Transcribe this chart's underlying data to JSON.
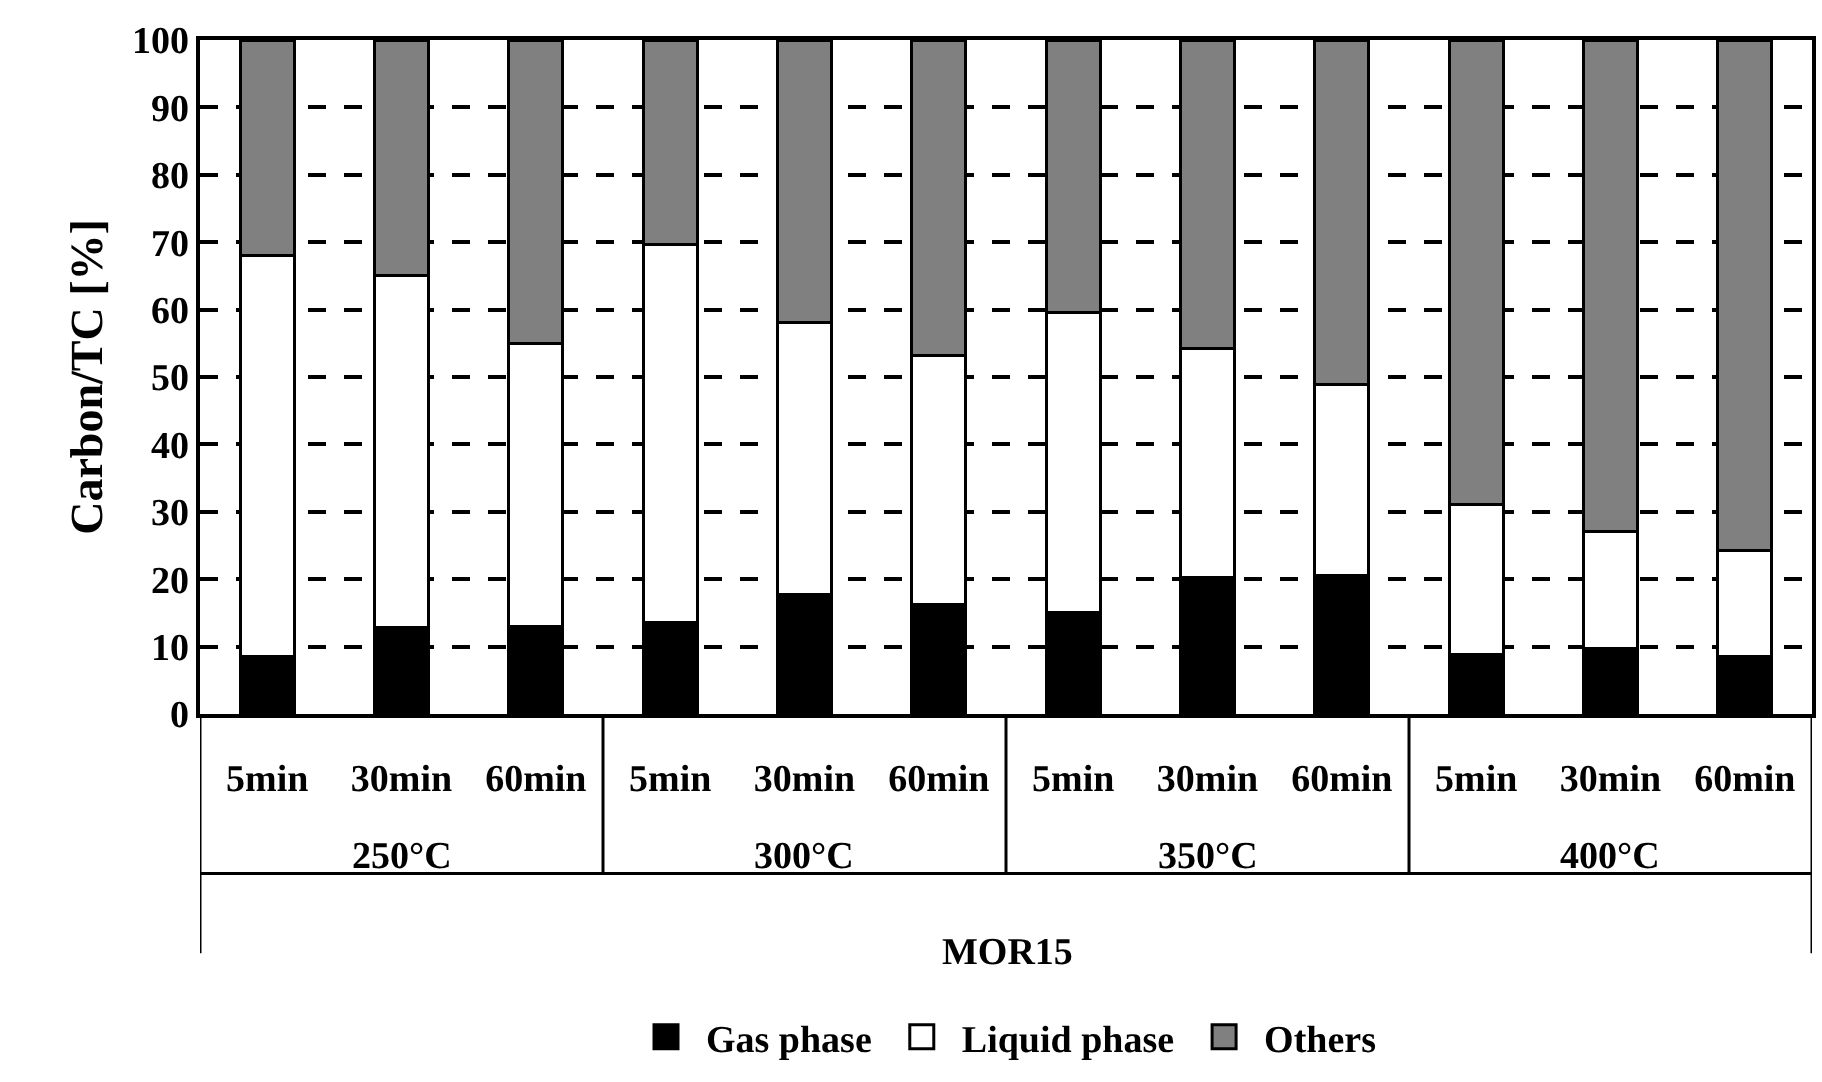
{
  "chart_data": {
    "type": "bar",
    "stacked": true,
    "ylabel": "Carbon/TC [%]",
    "xlabel": "MOR15",
    "categories": [
      "5min",
      "30min",
      "60min",
      "5min",
      "30min",
      "60min",
      "5min",
      "30min",
      "60min",
      "5min",
      "30min",
      "60min"
    ],
    "annotations": [
      "250°C",
      "300°C",
      "350°C",
      "400°C"
    ],
    "series": [
      {
        "name": "Gas phase",
        "color": "#000000",
        "values": [
          8.6,
          12.9,
          13.0,
          13.6,
          17.8,
          16.3,
          15.0,
          20.3,
          20.6,
          8.8,
          9.7,
          8.6
        ]
      },
      {
        "name": "Liquid phase",
        "color": "#ffffff",
        "values": [
          59.5,
          52.1,
          42.0,
          56.1,
          40.3,
          36.9,
          44.5,
          33.9,
          28.3,
          22.3,
          17.4,
          15.6
        ]
      },
      {
        "name": "Others",
        "color": "#808080",
        "values": [
          31.9,
          35.0,
          45.0,
          30.3,
          41.9,
          46.8,
          40.5,
          45.8,
          51.1,
          68.9,
          72.9,
          75.8
        ]
      }
    ],
    "ylim": [
      0,
      100
    ],
    "yticks": [
      0,
      10,
      20,
      30,
      40,
      50,
      60,
      70,
      80,
      90,
      100
    ],
    "grid": "y",
    "legend": "bottom"
  }
}
